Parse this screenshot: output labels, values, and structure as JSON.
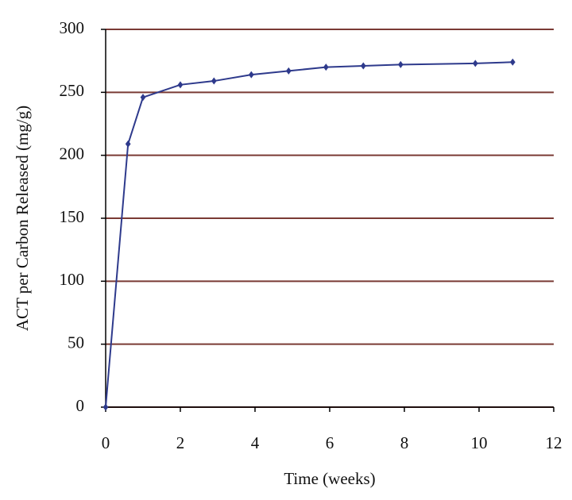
{
  "chart_data": {
    "type": "line",
    "x_label": "Time (weeks)",
    "y_label": "ACT per Carbon Released (mg/g)",
    "x": [
      0,
      0.6,
      1,
      2,
      2.9,
      3.9,
      4.9,
      5.9,
      6.9,
      7.9,
      9.9,
      10.9
    ],
    "series": [
      {
        "color": "#2e3a8c",
        "values": [
          0,
          209,
          246,
          256,
          259,
          264,
          267,
          270,
          271,
          272,
          273,
          274
        ]
      }
    ],
    "xlim": [
      0,
      12
    ],
    "xticks": [
      0,
      2,
      4,
      6,
      8,
      10,
      12
    ],
    "ylim": [
      0,
      300
    ],
    "yticks": [
      0,
      50,
      100,
      150,
      200,
      250,
      300
    ],
    "grid": true,
    "grid_color": "#7a3a34"
  }
}
